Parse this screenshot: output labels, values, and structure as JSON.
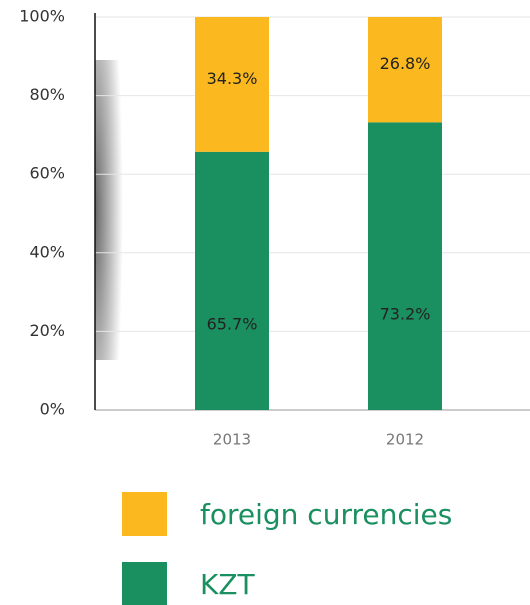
{
  "chart_data": {
    "type": "stacked_bar",
    "categories": [
      "2013",
      "2012"
    ],
    "series": [
      {
        "name": "KZT",
        "color": "#1a8f5f",
        "values": [
          65.7,
          73.2
        ],
        "value_labels": [
          "65.7%",
          "73.2%"
        ]
      },
      {
        "name": "foreign currencies",
        "color": "#fbb91f",
        "values": [
          34.3,
          26.8
        ],
        "value_labels": [
          "34.3%",
          "26.8%"
        ]
      }
    ],
    "ylim": [
      0,
      100
    ],
    "yticks": [
      {
        "value": 0,
        "label": "0%"
      },
      {
        "value": 20,
        "label": "20%"
      },
      {
        "value": 40,
        "label": "40%"
      },
      {
        "value": 60,
        "label": "60%"
      },
      {
        "value": 80,
        "label": "80%"
      },
      {
        "value": 100,
        "label": "100%"
      }
    ],
    "grid": true
  }
}
